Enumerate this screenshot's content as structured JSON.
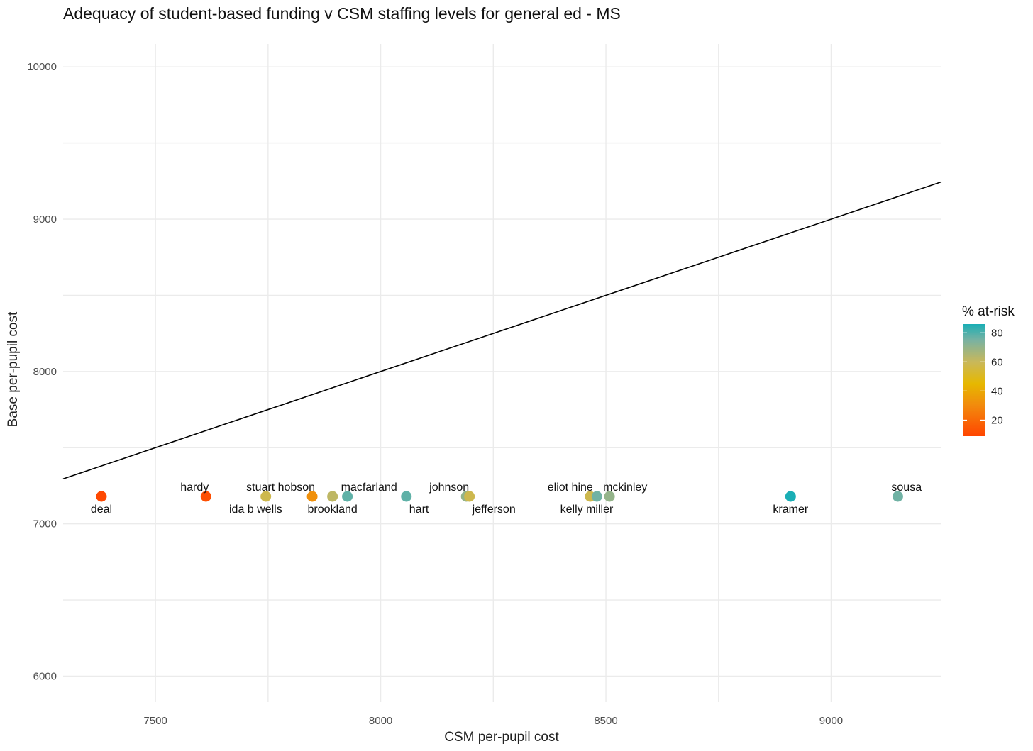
{
  "chart_data": {
    "type": "scatter",
    "title": "Adequacy of student-based funding v CSM staffing levels for general ed - MS",
    "xlabel": "CSM per-pupil cost",
    "ylabel": "Base per-pupil cost",
    "xlim": [
      7295,
      9245
    ],
    "ylim": [
      5830,
      10150
    ],
    "x_ticks": [
      7500,
      8000,
      8500,
      9000
    ],
    "y_ticks": [
      6000,
      7000,
      8000,
      9000,
      10000
    ],
    "reference_line": {
      "slope": 1,
      "intercept": 0,
      "description": "y = x"
    },
    "color_scale": {
      "title": "% at-risk",
      "min": 9,
      "max": 86,
      "ticks": [
        20,
        40,
        60,
        80
      ],
      "stops": [
        {
          "value": 9,
          "color": "#ff4500"
        },
        {
          "value": 30,
          "color": "#f28a0d"
        },
        {
          "value": 45,
          "color": "#e6b800"
        },
        {
          "value": 60,
          "color": "#c9b85a"
        },
        {
          "value": 75,
          "color": "#79b2a2"
        },
        {
          "value": 86,
          "color": "#1aaeb5"
        }
      ]
    },
    "points": [
      {
        "name": "deal",
        "x": 7380,
        "y": 7180,
        "at_risk": 10,
        "label_pos": "below"
      },
      {
        "name": "hardy",
        "x": 7612,
        "y": 7180,
        "at_risk": 12,
        "label_pos": "above-left"
      },
      {
        "name": "ida b wells",
        "x": 7745,
        "y": 7180,
        "at_risk": 58,
        "label_pos": "below-left"
      },
      {
        "name": "stuart hobson",
        "x": 7848,
        "y": 7180,
        "at_risk": 32,
        "label_pos": "above-left"
      },
      {
        "name": "brookland",
        "x": 7893,
        "y": 7180,
        "at_risk": 62,
        "label_pos": "below"
      },
      {
        "name": "macfarland",
        "x": 7926,
        "y": 7180,
        "at_risk": 78,
        "label_pos": "above-right"
      },
      {
        "name": "hart",
        "x": 8057,
        "y": 7180,
        "at_risk": 78,
        "label_pos": "below-right"
      },
      {
        "name": "johnson",
        "x": 8190,
        "y": 7180,
        "at_risk": 70,
        "label_pos": "above-left"
      },
      {
        "name": "jefferson",
        "x": 8197,
        "y": 7180,
        "at_risk": 58,
        "label_pos": "below-right"
      },
      {
        "name": "eliot hine",
        "x": 8465,
        "y": 7180,
        "at_risk": 58,
        "label_pos": "above-left"
      },
      {
        "name": "kelly miller",
        "x": 8480,
        "y": 7180,
        "at_risk": 76,
        "label_pos": "below-left"
      },
      {
        "name": "mckinley",
        "x": 8508,
        "y": 7180,
        "at_risk": 70,
        "label_pos": "above-right"
      },
      {
        "name": "kramer",
        "x": 8910,
        "y": 7180,
        "at_risk": 86,
        "label_pos": "below"
      },
      {
        "name": "sousa",
        "x": 9148,
        "y": 7180,
        "at_risk": 76,
        "label_pos": "above-right"
      }
    ]
  }
}
